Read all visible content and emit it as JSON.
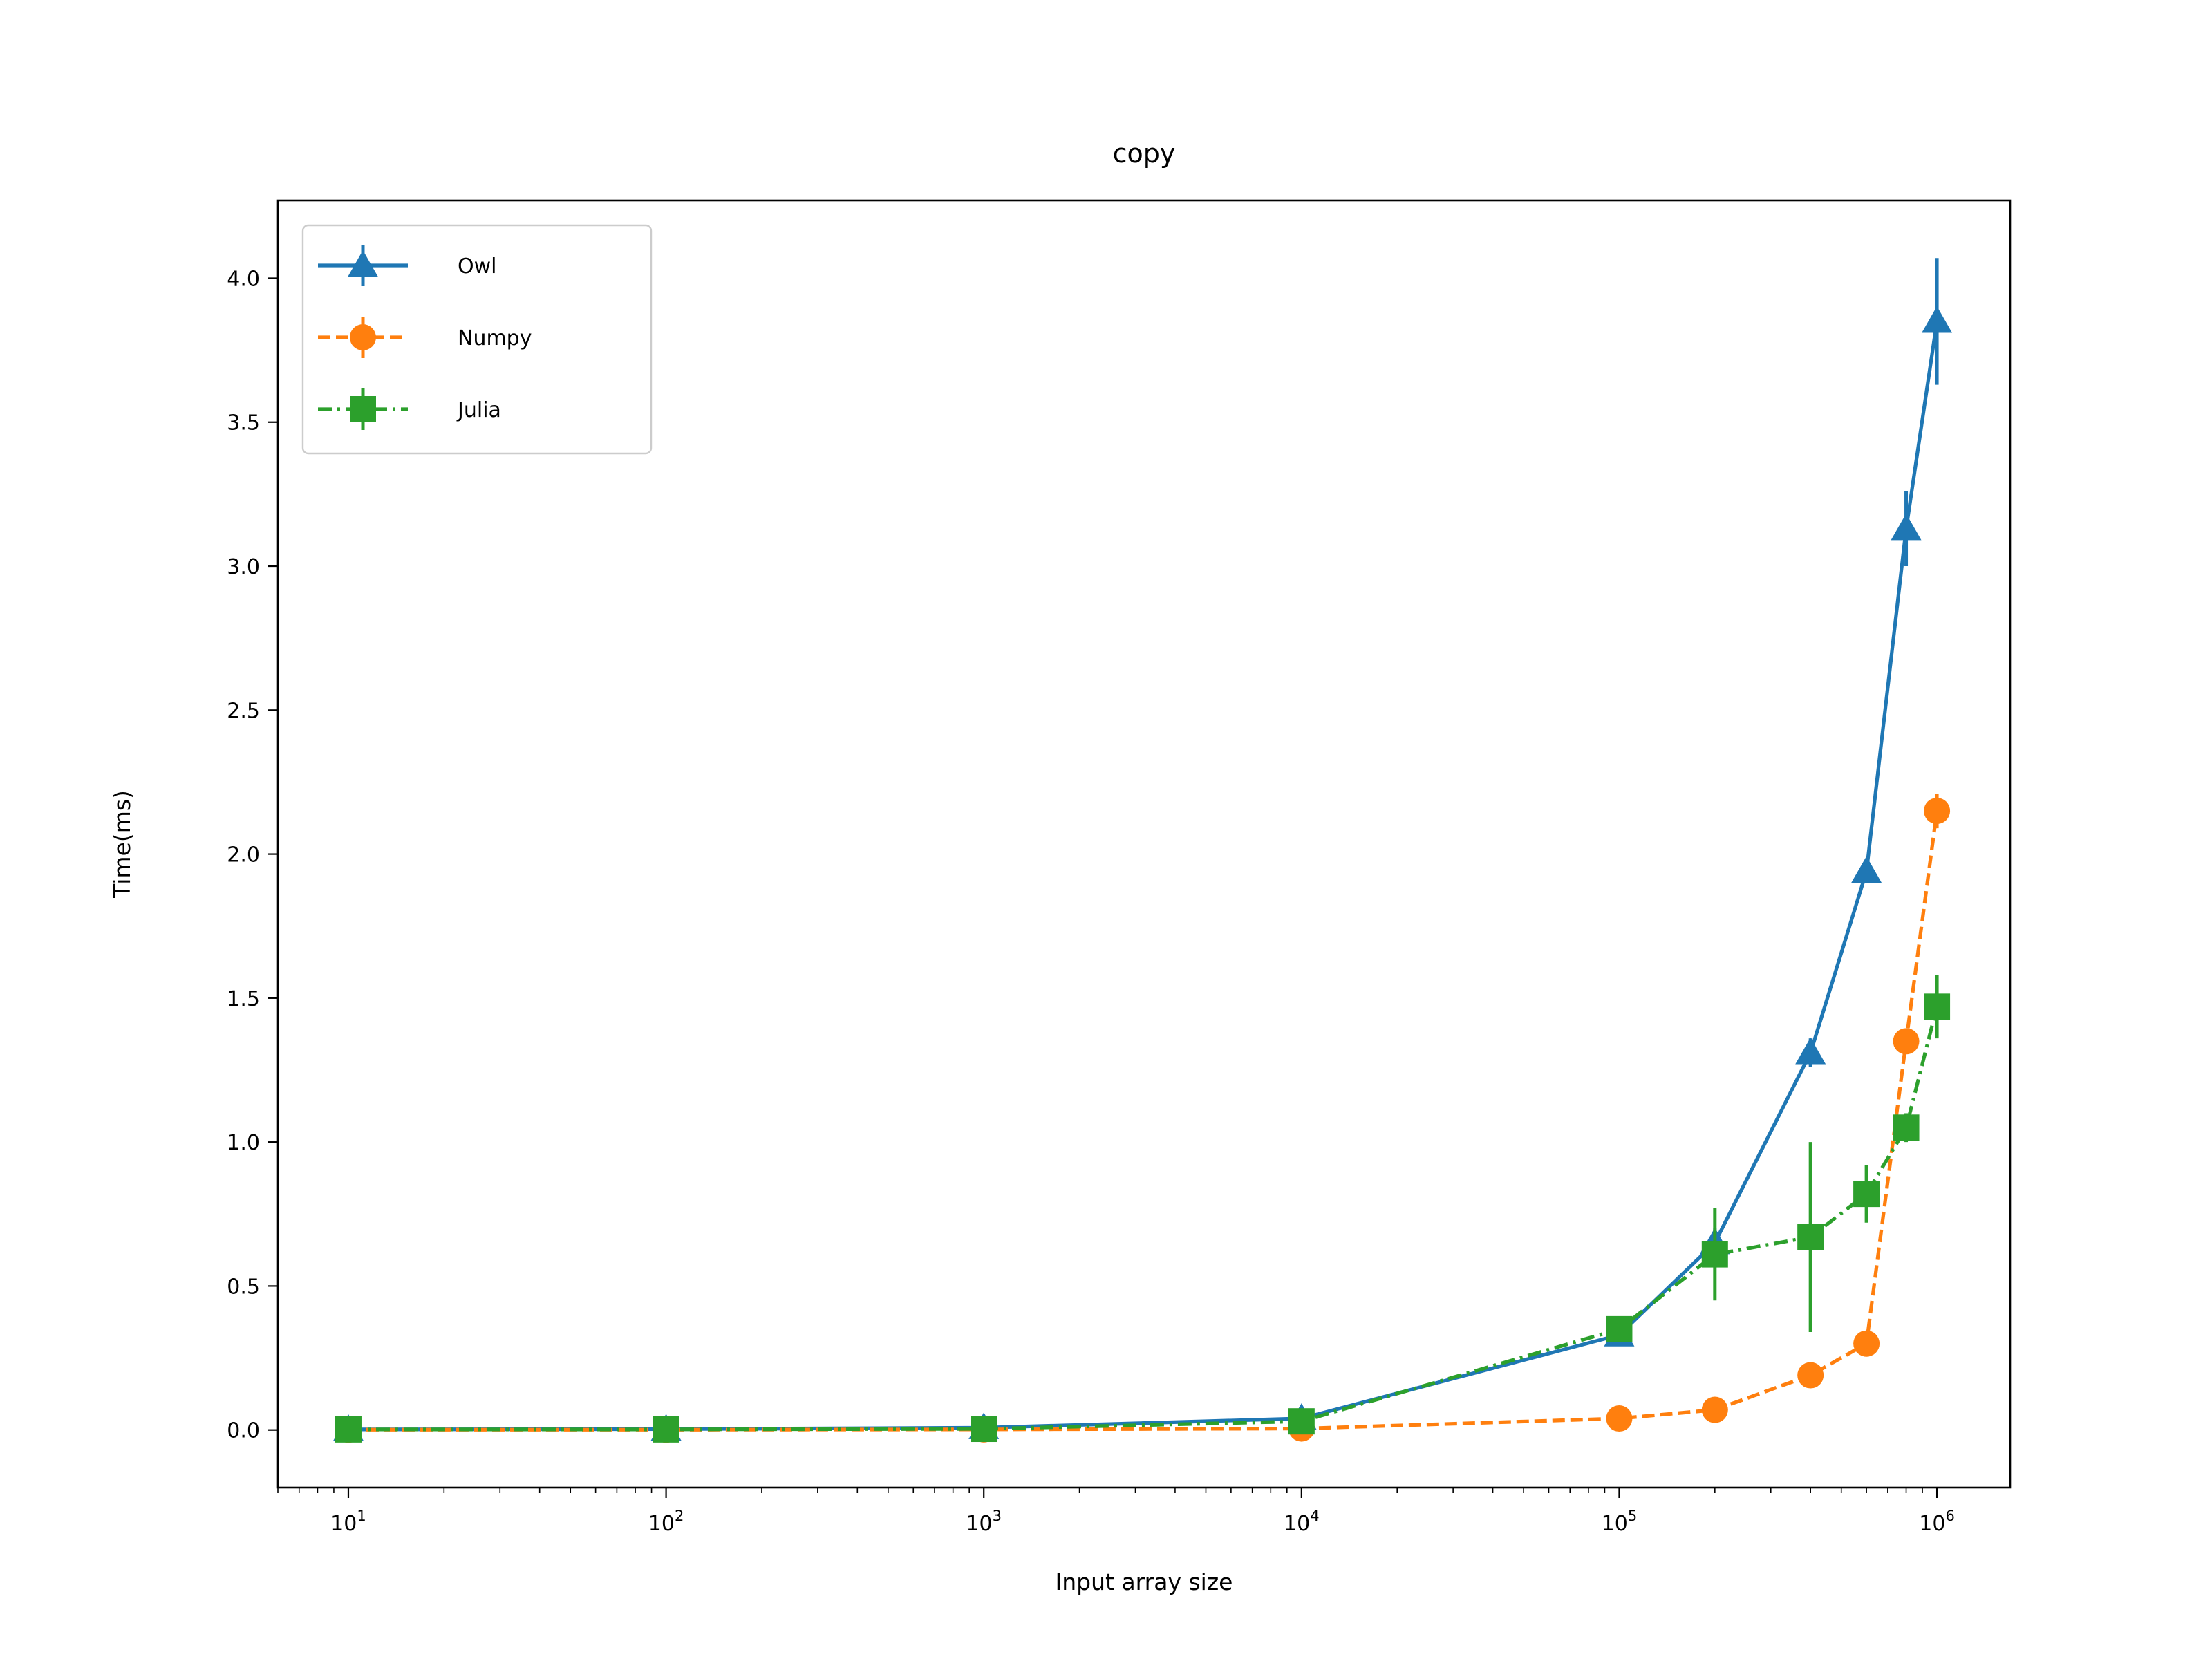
{
  "chart_data": {
    "type": "line",
    "title": "copy",
    "xlabel": "Input array size",
    "ylabel": "Time(ms)",
    "x_scale": "log",
    "xlim": [
      6,
      1700000
    ],
    "ylim": [
      -0.2,
      4.27
    ],
    "x_ticks": [
      {
        "value": 10,
        "base": "10",
        "exp": "1"
      },
      {
        "value": 100,
        "base": "10",
        "exp": "2"
      },
      {
        "value": 1000,
        "base": "10",
        "exp": "3"
      },
      {
        "value": 10000,
        "base": "10",
        "exp": "4"
      },
      {
        "value": 100000,
        "base": "10",
        "exp": "5"
      },
      {
        "value": 1000000,
        "base": "10",
        "exp": "6"
      }
    ],
    "y_ticks": [
      {
        "value": 0.0,
        "label": "0.0"
      },
      {
        "value": 0.5,
        "label": "0.5"
      },
      {
        "value": 1.0,
        "label": "1.0"
      },
      {
        "value": 1.5,
        "label": "1.5"
      },
      {
        "value": 2.0,
        "label": "2.0"
      },
      {
        "value": 2.5,
        "label": "2.5"
      },
      {
        "value": 3.0,
        "label": "3.0"
      },
      {
        "value": 3.5,
        "label": "3.5"
      },
      {
        "value": 4.0,
        "label": "4.0"
      }
    ],
    "grid": false,
    "legend_position": "top-left",
    "series": [
      {
        "name": "Owl",
        "color": "#1f77b4",
        "marker": "triangle",
        "linestyle": "solid",
        "x": [
          10,
          100,
          1000,
          10000,
          100000,
          200000,
          400000,
          600000,
          800000,
          1000000
        ],
        "y": [
          0.002,
          0.003,
          0.008,
          0.04,
          0.33,
          0.65,
          1.31,
          1.94,
          3.13,
          3.85
        ],
        "err": [
          0.002,
          0.002,
          0.003,
          0.01,
          0.02,
          0.05,
          0.05,
          0.04,
          0.13,
          0.22
        ]
      },
      {
        "name": "Numpy",
        "color": "#ff7f0e",
        "marker": "circle",
        "linestyle": "dashed",
        "x": [
          10,
          100,
          1000,
          10000,
          100000,
          200000,
          400000,
          600000,
          800000,
          1000000
        ],
        "y": [
          0.001,
          0.001,
          0.002,
          0.005,
          0.04,
          0.07,
          0.19,
          0.3,
          1.35,
          2.15
        ],
        "err": [
          0.001,
          0.001,
          0.001,
          0.002,
          0.005,
          0.005,
          0.01,
          0.01,
          0.02,
          0.06
        ]
      },
      {
        "name": "Julia",
        "color": "#2ca02c",
        "marker": "square",
        "linestyle": "dashdot",
        "x": [
          10,
          100,
          1000,
          10000,
          100000,
          200000,
          400000,
          600000,
          800000,
          1000000
        ],
        "y": [
          0.002,
          0.002,
          0.004,
          0.03,
          0.35,
          0.61,
          0.67,
          0.82,
          1.05,
          1.47
        ],
        "err": [
          0.002,
          0.002,
          0.002,
          0.02,
          0.03,
          0.16,
          0.33,
          0.1,
          0.05,
          0.11
        ]
      }
    ]
  }
}
